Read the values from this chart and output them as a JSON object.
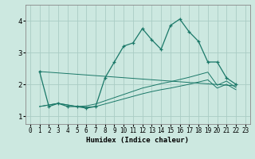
{
  "xlabel": "Humidex (Indice chaleur)",
  "bg_color": "#cce8e0",
  "line_color": "#1a7868",
  "grid_color": "#aaccC4",
  "xlim": [
    -0.5,
    23.5
  ],
  "ylim": [
    0.75,
    4.5
  ],
  "xticks": [
    0,
    1,
    2,
    3,
    4,
    5,
    6,
    7,
    8,
    9,
    10,
    11,
    12,
    13,
    14,
    15,
    16,
    17,
    18,
    19,
    20,
    21,
    22,
    23
  ],
  "yticks": [
    1,
    2,
    3,
    4
  ],
  "lines": [
    {
      "x": [
        1,
        2,
        3,
        4,
        5,
        6,
        7,
        8,
        9,
        10,
        11,
        12,
        13,
        14,
        15,
        16,
        17,
        18,
        19,
        20,
        21,
        22
      ],
      "y": [
        2.4,
        1.3,
        1.4,
        1.3,
        1.3,
        1.25,
        1.3,
        2.2,
        2.7,
        3.2,
        3.3,
        3.75,
        3.4,
        3.1,
        3.85,
        4.05,
        3.65,
        3.35,
        2.7,
        2.7,
        2.2,
        2.0
      ],
      "marker": true
    },
    {
      "x": [
        1,
        22
      ],
      "y": [
        2.4,
        1.95
      ],
      "marker": false
    },
    {
      "x": [
        1,
        3,
        5,
        6,
        7,
        8,
        9,
        10,
        11,
        12,
        13,
        14,
        15,
        16,
        17,
        18,
        19,
        20,
        21,
        22
      ],
      "y": [
        1.3,
        1.4,
        1.3,
        1.32,
        1.38,
        1.48,
        1.58,
        1.68,
        1.78,
        1.88,
        1.95,
        2.02,
        2.08,
        2.15,
        2.22,
        2.3,
        2.38,
        1.97,
        2.1,
        1.9
      ],
      "marker": false
    },
    {
      "x": [
        1,
        3,
        5,
        6,
        7,
        8,
        9,
        10,
        11,
        12,
        13,
        14,
        15,
        16,
        17,
        18,
        19,
        20,
        21,
        22
      ],
      "y": [
        1.3,
        1.4,
        1.3,
        1.28,
        1.3,
        1.38,
        1.46,
        1.54,
        1.62,
        1.7,
        1.77,
        1.83,
        1.88,
        1.94,
        2.0,
        2.07,
        2.14,
        1.88,
        2.0,
        1.83
      ],
      "marker": false
    }
  ]
}
